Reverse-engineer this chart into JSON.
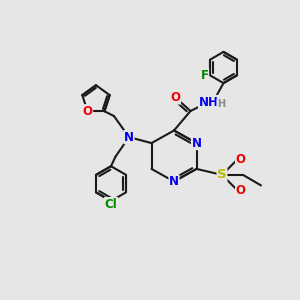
{
  "bg_color": "#e6e6e6",
  "bond_color": "#1a1a1a",
  "bond_width": 1.5,
  "atom_colors": {
    "N": "#0000ee",
    "O": "#ee0000",
    "S": "#bbbb00",
    "F": "#008800",
    "Cl": "#008800",
    "H": "#888888",
    "C": "#1a1a1a"
  },
  "font_size": 8.5
}
